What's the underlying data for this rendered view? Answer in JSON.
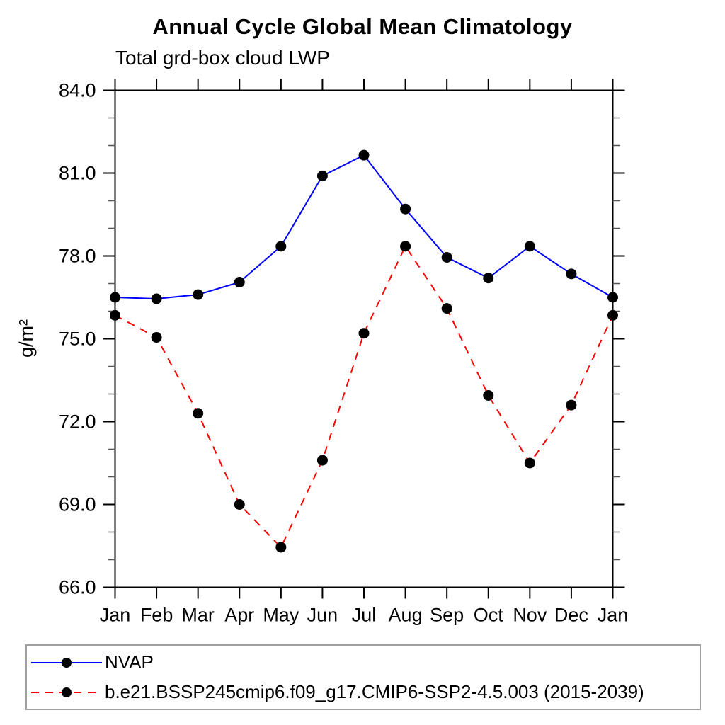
{
  "chart_data": {
    "type": "line",
    "title": "Annual Cycle Global Mean Climatology",
    "subtitle": "Total grd-box cloud LWP",
    "xlabel": "",
    "ylabel": "g/m²",
    "ylim": [
      66.0,
      84.0
    ],
    "ytick_labels": [
      "66.0",
      "69.0",
      "72.0",
      "75.0",
      "78.0",
      "81.0",
      "84.0"
    ],
    "ytick_values": [
      66,
      69,
      72,
      75,
      78,
      81,
      84
    ],
    "ytick_minor_step": 1,
    "categories": [
      "Jan",
      "Feb",
      "Mar",
      "Apr",
      "May",
      "Jun",
      "Jul",
      "Aug",
      "Sep",
      "Oct",
      "Nov",
      "Dec",
      "Jan"
    ],
    "grid": false,
    "legend_position": "bottom",
    "series": [
      {
        "name": "NVAP",
        "color": "#0000ff",
        "line_style": "solid",
        "marker": "filled-circle",
        "marker_color": "#000000",
        "values": [
          76.5,
          76.45,
          76.6,
          77.05,
          78.35,
          80.9,
          81.65,
          79.7,
          77.95,
          77.2,
          78.35,
          77.35,
          76.5
        ]
      },
      {
        "name": "b.e21.BSSP245cmip6.f09_g17.CMIP6-SSP2-4.5.003 (2015-2039)",
        "color": "#ff0000",
        "line_style": "dashed",
        "marker": "filled-circle",
        "marker_color": "#000000",
        "values": [
          75.85,
          75.05,
          72.3,
          69.0,
          67.45,
          70.6,
          75.2,
          78.35,
          76.1,
          72.95,
          70.5,
          72.6,
          75.85
        ]
      }
    ]
  }
}
